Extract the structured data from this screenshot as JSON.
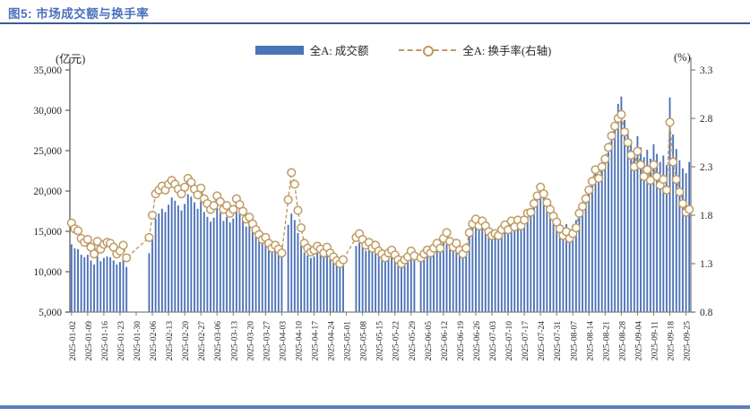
{
  "header": {
    "title": "图5: 市场成交额与换手率"
  },
  "chart": {
    "left_axis_unit": "(亿元)",
    "right_axis_unit": "(%)",
    "legend": [
      {
        "label": "全A: 成交额",
        "type": "bar"
      },
      {
        "label": "全A: 换手率(右轴)",
        "type": "line"
      }
    ],
    "left_ticks": [
      "35,000",
      "30,000",
      "25,000",
      "20,000",
      "15,000",
      "10,000",
      "5,000"
    ],
    "right_ticks": [
      "3.3",
      "2.8",
      "2.3",
      "1.8",
      "1.3",
      "0.8"
    ]
  },
  "chart_data": {
    "type": "bar+line",
    "title": "图5: 市场成交额与换手率",
    "x_tick_labels": [
      "2025-01-02",
      "2025-01-09",
      "2025-01-16",
      "2025-01-23",
      "2025-01-30",
      "2025-02-06",
      "2025-02-13",
      "2025-02-20",
      "2025-02-27",
      "2025-03-06",
      "2025-03-13",
      "2025-03-20",
      "2025-03-27",
      "2025-04-03",
      "2025-04-10",
      "2025-04-17",
      "2025-04-24",
      "2025-05-01",
      "2025-05-08",
      "2025-05-15",
      "2025-05-22",
      "2025-05-29",
      "2025-06-05",
      "2025-06-12",
      "2025-06-19",
      "2025-06-26",
      "2025-07-03",
      "2025-07-10",
      "2025-07-17",
      "2025-07-24",
      "2025-07-31",
      "2025-08-07",
      "2025-08-14",
      "2025-08-21",
      "2025-08-28",
      "2025-09-04",
      "2025-09-11",
      "2025-09-18",
      "2025-09-25"
    ],
    "x_tick_every": 5,
    "left_ylim": [
      5000,
      35000
    ],
    "right_ylim": [
      0.8,
      3.3
    ],
    "legend_position": "top",
    "grid": false,
    "series": [
      {
        "name": "全A: 成交额",
        "type": "bar",
        "axis": "left",
        "unit": "亿元",
        "values": [
          13400,
          12900,
          12800,
          12100,
          11800,
          12100,
          11400,
          10900,
          11900,
          11300,
          11700,
          11900,
          11800,
          11400,
          10900,
          11200,
          11700,
          10600,
          null,
          null,
          null,
          null,
          null,
          null,
          12300,
          14200,
          16600,
          17200,
          17800,
          17400,
          18300,
          19200,
          18800,
          18200,
          17600,
          18400,
          19600,
          19300,
          18600,
          17800,
          18700,
          17400,
          16800,
          16200,
          16700,
          17900,
          17300,
          16300,
          16800,
          16100,
          16600,
          17800,
          17200,
          16400,
          15600,
          15900,
          15200,
          14600,
          14100,
          13600,
          13900,
          13200,
          12800,
          13100,
          12700,
          12400,
          null,
          15800,
          17200,
          16400,
          14800,
          13600,
          12400,
          12000,
          11700,
          11900,
          12300,
          12100,
          11800,
          12400,
          11900,
          11500,
          11200,
          10900,
          11300,
          null,
          null,
          null,
          13200,
          13600,
          13100,
          12600,
          12900,
          12400,
          12700,
          12200,
          11900,
          11600,
          12100,
          12400,
          11900,
          11500,
          11200,
          11600,
          11900,
          12500,
          12000,
          null,
          11800,
          12200,
          12600,
          12300,
          12800,
          13300,
          12900,
          13800,
          14400,
          13600,
          13100,
          13500,
          12900,
          12500,
          13100,
          14600,
          15400,
          15900,
          15300,
          15800,
          15400,
          14900,
          14500,
          14800,
          14600,
          15200,
          15700,
          15300,
          16100,
          15600,
          16300,
          15800,
          16400,
          17100,
          17200,
          18100,
          18900,
          19800,
          19200,
          18400,
          17800,
          17200,
          16600,
          16000,
          15400,
          15900,
          15300,
          15800,
          16400,
          17900,
          18600,
          19400,
          20300,
          21200,
          22400,
          21600,
          22800,
          23600,
          24800,
          26800,
          28400,
          30800,
          31700,
          28800,
          27500,
          26200,
          25000,
          26800,
          25400,
          24200,
          25100,
          24000,
          25800,
          24600,
          23600,
          24400,
          23200,
          31600,
          27000,
          25200,
          23800,
          22800,
          22200,
          23600
        ]
      },
      {
        "name": "全A: 换手率(右轴)",
        "type": "line",
        "axis": "right",
        "unit": "%",
        "values": [
          1.72,
          1.66,
          1.64,
          1.56,
          1.52,
          1.55,
          1.47,
          1.4,
          1.53,
          1.45,
          1.5,
          1.52,
          1.51,
          1.47,
          1.4,
          1.43,
          1.49,
          1.36,
          null,
          null,
          null,
          null,
          null,
          null,
          1.57,
          1.8,
          2.02,
          2.06,
          2.1,
          2.06,
          2.12,
          2.16,
          2.12,
          2.07,
          2.02,
          2.09,
          2.18,
          2.14,
          2.07,
          2.01,
          2.08,
          1.97,
          1.92,
          1.86,
          1.9,
          2.0,
          1.94,
          1.86,
          1.9,
          1.82,
          1.86,
          1.97,
          1.91,
          1.84,
          1.76,
          1.78,
          1.71,
          1.65,
          1.6,
          1.55,
          1.57,
          1.51,
          1.46,
          1.49,
          1.45,
          1.41,
          null,
          1.96,
          2.24,
          2.12,
          1.85,
          1.67,
          1.51,
          1.46,
          1.42,
          1.44,
          1.48,
          1.45,
          1.41,
          1.47,
          1.41,
          1.37,
          1.33,
          1.3,
          1.34,
          null,
          null,
          null,
          1.57,
          1.61,
          1.55,
          1.49,
          1.52,
          1.46,
          1.49,
          1.43,
          1.4,
          1.36,
          1.41,
          1.44,
          1.39,
          1.34,
          1.3,
          1.34,
          1.37,
          1.43,
          1.38,
          null,
          1.36,
          1.4,
          1.44,
          1.41,
          1.46,
          1.51,
          1.46,
          1.56,
          1.62,
          1.53,
          1.47,
          1.51,
          1.44,
          1.4,
          1.46,
          1.62,
          1.71,
          1.76,
          1.69,
          1.74,
          1.69,
          1.63,
          1.59,
          1.61,
          1.59,
          1.65,
          1.7,
          1.65,
          1.74,
          1.68,
          1.75,
          1.69,
          1.75,
          1.82,
          1.83,
          1.92,
          2.0,
          2.09,
          2.02,
          1.93,
          1.86,
          1.79,
          1.73,
          1.66,
          1.59,
          1.63,
          1.56,
          1.61,
          1.67,
          1.82,
          1.89,
          1.97,
          2.06,
          2.15,
          2.27,
          2.18,
          2.3,
          2.38,
          2.5,
          2.62,
          2.72,
          2.8,
          2.84,
          2.66,
          2.55,
          2.42,
          2.3,
          2.46,
          2.32,
          2.2,
          2.27,
          2.16,
          2.32,
          2.2,
          2.11,
          2.17,
          2.06,
          2.76,
          2.35,
          2.17,
          2.04,
          1.92,
          1.83,
          1.86
        ]
      }
    ],
    "colors": {
      "bar": "#4c72b8",
      "line": "#bf9b62",
      "title": "#4a71bb",
      "axis_left": "#595959",
      "axis_right": "#808080",
      "axis_bottom": "#808080"
    }
  }
}
